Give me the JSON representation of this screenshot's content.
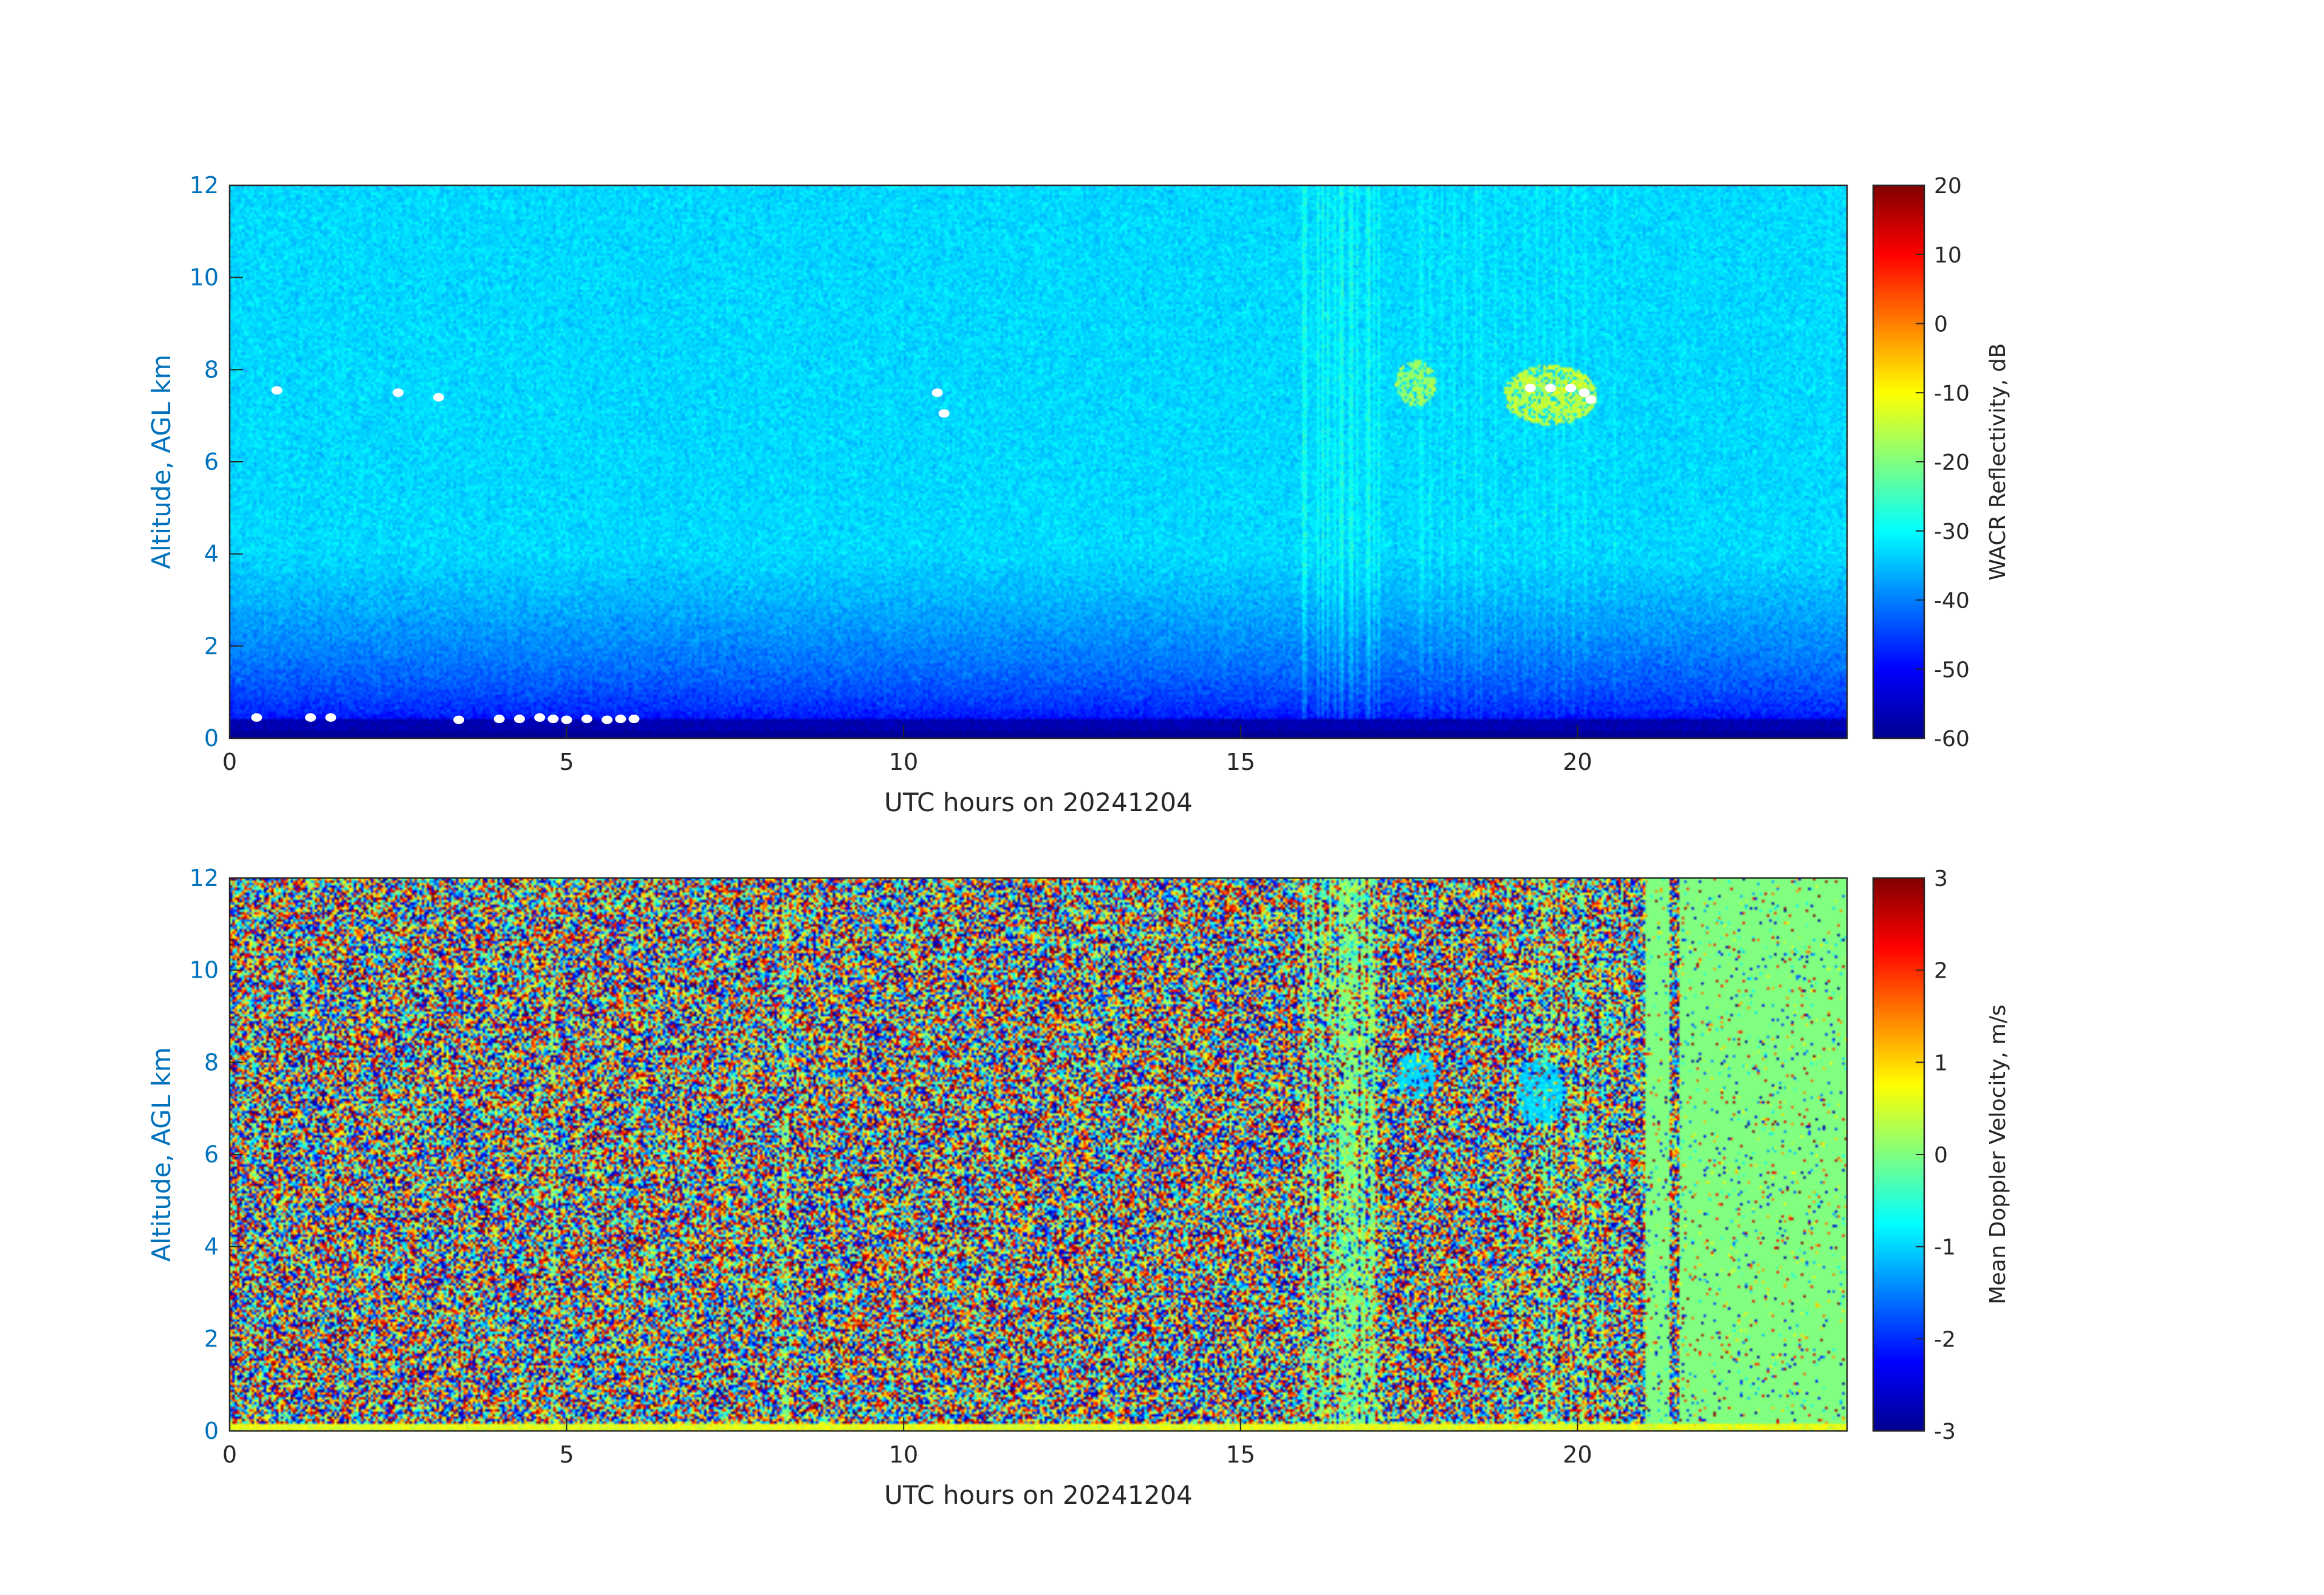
{
  "figure": {
    "background": "#ffffff"
  },
  "chart_data": [
    {
      "type": "heatmap",
      "xlabel": "UTC hours on 20241204",
      "ylabel": "Altitude, AGL km",
      "xlim": [
        0,
        24
      ],
      "ylim": [
        0,
        12
      ],
      "xticks": [
        0,
        5,
        10,
        15,
        20
      ],
      "yticks": [
        0,
        2,
        4,
        6,
        8,
        10,
        12
      ],
      "colorbar": {
        "label": "WACR Reflectivity, dB",
        "range": [
          -60,
          20
        ],
        "ticks": [
          20,
          10,
          0,
          -10,
          -20,
          -30,
          -40,
          -50,
          -60
        ],
        "colormap": "jet"
      },
      "field_description_values": {
        "surface_layer_db": -58,
        "low_altitude_db": -50,
        "high_altitude_db": -33
      },
      "features": [
        {
          "x": [
            17.3,
            17.9
          ],
          "y": [
            7.2,
            8.2
          ],
          "z_db": -18
        },
        {
          "x": [
            18.9,
            20.3
          ],
          "y": [
            6.8,
            8.1
          ],
          "z_db": -15
        }
      ],
      "white_markers": [
        {
          "x": 0.4,
          "y": 0.45
        },
        {
          "x": 0.7,
          "y": 7.55
        },
        {
          "x": 1.2,
          "y": 0.45
        },
        {
          "x": 1.5,
          "y": 0.45
        },
        {
          "x": 2.5,
          "y": 7.5
        },
        {
          "x": 3.1,
          "y": 7.4
        },
        {
          "x": 3.4,
          "y": 0.4
        },
        {
          "x": 4.0,
          "y": 0.42
        },
        {
          "x": 4.3,
          "y": 0.42
        },
        {
          "x": 4.6,
          "y": 0.45
        },
        {
          "x": 4.8,
          "y": 0.42
        },
        {
          "x": 5.0,
          "y": 0.4
        },
        {
          "x": 5.3,
          "y": 0.42
        },
        {
          "x": 5.6,
          "y": 0.4
        },
        {
          "x": 5.8,
          "y": 0.42
        },
        {
          "x": 6.0,
          "y": 0.42
        },
        {
          "x": 10.5,
          "y": 7.5
        },
        {
          "x": 10.6,
          "y": 7.05
        },
        {
          "x": 19.3,
          "y": 7.6
        },
        {
          "x": 19.6,
          "y": 7.6
        },
        {
          "x": 19.9,
          "y": 7.6
        },
        {
          "x": 20.1,
          "y": 7.5
        },
        {
          "x": 20.2,
          "y": 7.35
        }
      ]
    },
    {
      "type": "heatmap",
      "xlabel": "UTC hours on 20241204",
      "ylabel": "Altitude, AGL km",
      "xlim": [
        0,
        24
      ],
      "ylim": [
        0,
        12
      ],
      "xticks": [
        0,
        5,
        10,
        15,
        20
      ],
      "yticks": [
        0,
        2,
        4,
        6,
        8,
        10,
        12
      ],
      "colorbar": {
        "label": "Mean Doppler Velocity, m/s",
        "range": [
          -3,
          3
        ],
        "ticks": [
          3,
          2,
          1,
          0,
          -1,
          -2,
          -3
        ],
        "colormap": "jet"
      },
      "field_description_values": {
        "noise_range": [
          -3,
          3
        ],
        "quiet_region_x": [
          21.0,
          24.0
        ],
        "quiet_region_value": 0
      },
      "features": [
        {
          "x": [
            17.3,
            17.9
          ],
          "y": [
            7.2,
            8.2
          ],
          "z_ms": -1.0
        },
        {
          "x": [
            19.1,
            19.8
          ],
          "y": [
            6.6,
            8.1
          ],
          "z_ms": -1.0
        }
      ]
    }
  ]
}
